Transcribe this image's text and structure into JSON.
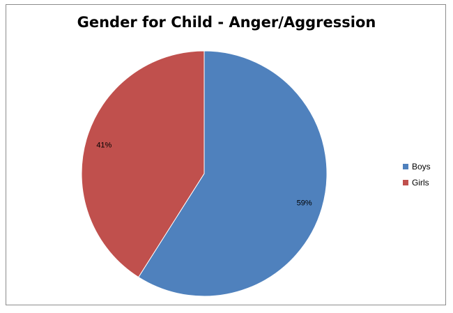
{
  "chart_data": {
    "type": "pie",
    "title": "Gender for Child - Anger/Aggression",
    "categories": [
      "Boys",
      "Girls"
    ],
    "values": [
      59,
      41
    ],
    "labels": [
      "59%",
      "41%"
    ],
    "colors": [
      "#4F81BD",
      "#C0504D"
    ],
    "legend": "right"
  }
}
